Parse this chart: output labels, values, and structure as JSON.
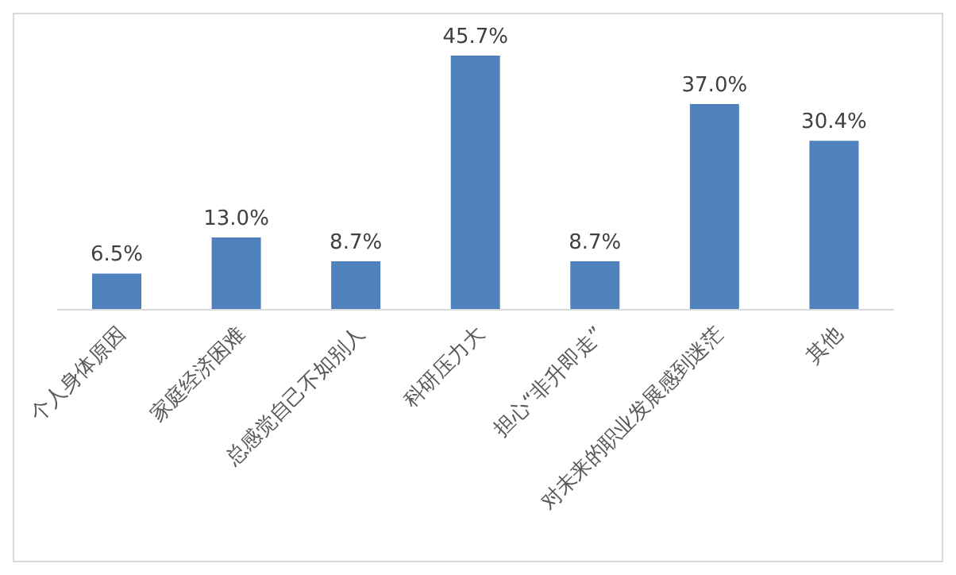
{
  "chart_data": {
    "type": "bar",
    "categories": [
      "个人身体原因",
      "家庭经济困难",
      "总感觉自己不如别人",
      "科研压力大",
      "担心“非升即走”",
      "对未来的职业发展感到迷茫",
      "其他"
    ],
    "values": [
      6.5,
      13.0,
      8.7,
      45.7,
      8.7,
      37.0,
      30.4
    ],
    "value_labels": [
      "6.5%",
      "13.0%",
      "8.7%",
      "45.7%",
      "8.7%",
      "37.0%",
      "30.4%"
    ],
    "color": "#4f81bd",
    "grid": false,
    "legend": false
  }
}
